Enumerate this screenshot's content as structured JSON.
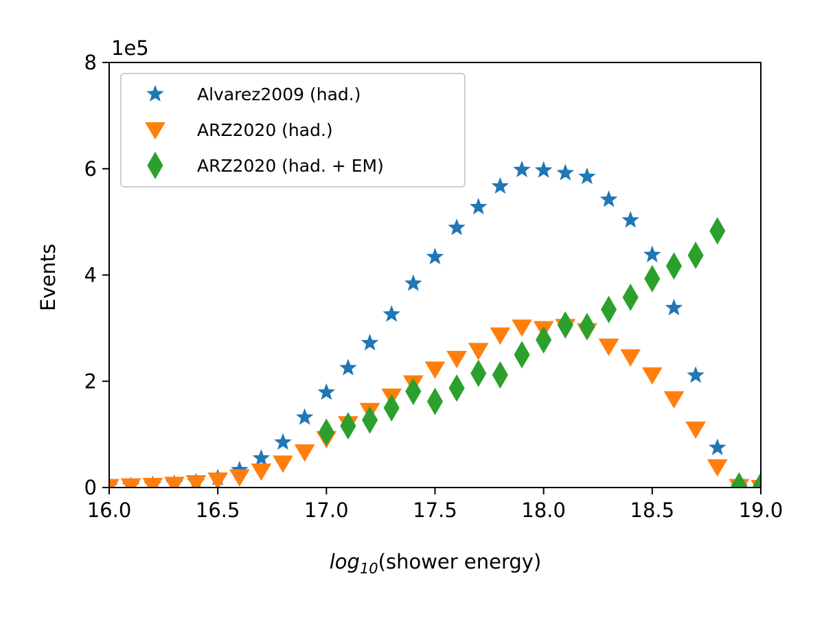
{
  "chart_data": {
    "type": "scatter",
    "title": "",
    "xlabel_log": "log",
    "xlabel_sub": "10",
    "xlabel_rest": "(shower energy)",
    "ylabel": "Events",
    "y_multiplier_label": "1e5",
    "xlim": [
      16.0,
      19.0
    ],
    "ylim": [
      0,
      8
    ],
    "x_ticks": [
      "16.0",
      "16.5",
      "17.0",
      "17.5",
      "18.0",
      "18.5",
      "19.0"
    ],
    "y_ticks": [
      "0",
      "2",
      "4",
      "6",
      "8"
    ],
    "grid": false,
    "legend_position": "top-left",
    "series": [
      {
        "name": "Alvarez2009 (had.)",
        "marker": "star",
        "color": "#1f77b4",
        "x": [
          16.0,
          16.1,
          16.2,
          16.3,
          16.4,
          16.5,
          16.6,
          16.7,
          16.8,
          16.9,
          17.0,
          17.1,
          17.2,
          17.3,
          17.4,
          17.5,
          17.6,
          17.7,
          17.8,
          17.9,
          18.0,
          18.1,
          18.2,
          18.3,
          18.4,
          18.5,
          18.6,
          18.7,
          18.8,
          18.9
        ],
        "y": [
          0.02,
          0.03,
          0.05,
          0.07,
          0.1,
          0.18,
          0.33,
          0.55,
          0.85,
          1.32,
          1.79,
          2.25,
          2.72,
          3.26,
          3.84,
          4.34,
          4.89,
          5.28,
          5.67,
          5.98,
          5.97,
          5.92,
          5.85,
          5.42,
          5.03,
          4.38,
          3.38,
          2.11,
          0.75,
          0.0
        ]
      },
      {
        "name": "ARZ2020 (had.)",
        "marker": "triangle-down",
        "color": "#ff7f0e",
        "x": [
          16.0,
          16.1,
          16.2,
          16.3,
          16.4,
          16.5,
          16.6,
          16.7,
          16.8,
          16.9,
          17.0,
          17.1,
          17.2,
          17.3,
          17.4,
          17.5,
          17.6,
          17.7,
          17.8,
          17.9,
          18.0,
          18.1,
          18.2,
          18.3,
          18.4,
          18.5,
          18.6,
          18.7,
          18.8,
          18.9,
          19.0
        ],
        "y": [
          0.02,
          0.03,
          0.04,
          0.06,
          0.09,
          0.14,
          0.2,
          0.31,
          0.46,
          0.67,
          0.92,
          1.2,
          1.45,
          1.72,
          1.97,
          2.23,
          2.43,
          2.58,
          2.87,
          3.02,
          2.99,
          3.03,
          2.95,
          2.66,
          2.46,
          2.12,
          1.67,
          1.1,
          0.39,
          0.02,
          0.0
        ]
      },
      {
        "name": "ARZ2020 (had. + EM)",
        "marker": "diamond",
        "color": "#2ca02c",
        "x": [
          17.0,
          17.1,
          17.2,
          17.3,
          17.4,
          17.5,
          17.6,
          17.7,
          17.8,
          17.9,
          18.0,
          18.1,
          18.2,
          18.3,
          18.4,
          18.5,
          18.6,
          18.7,
          18.8,
          18.9,
          19.0
        ],
        "y": [
          1.04,
          1.16,
          1.27,
          1.5,
          1.81,
          1.62,
          1.87,
          2.15,
          2.12,
          2.5,
          2.78,
          3.06,
          3.03,
          3.35,
          3.58,
          3.93,
          4.17,
          4.37,
          4.83,
          0.03,
          0.03
        ]
      }
    ]
  }
}
